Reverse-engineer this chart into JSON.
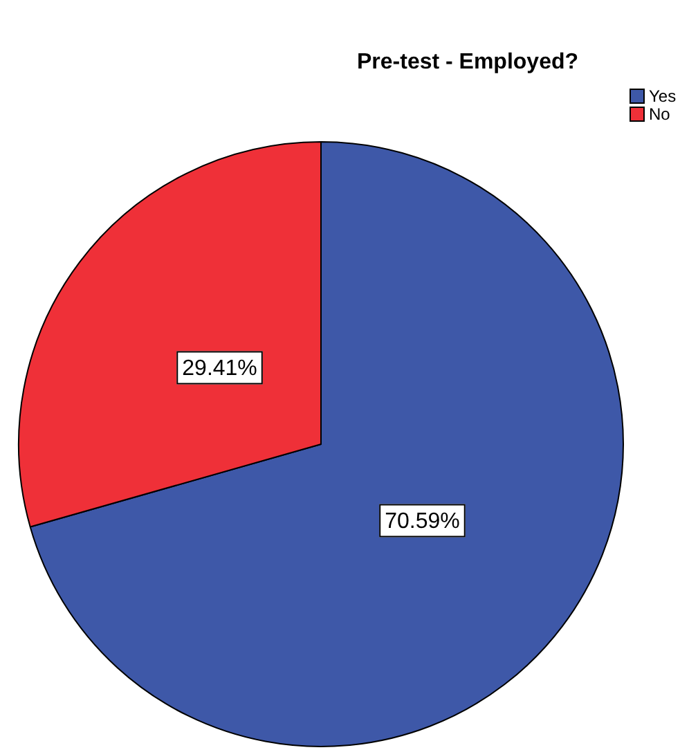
{
  "chart_data": {
    "type": "pie",
    "title": "Pre-test - Employed?",
    "categories": [
      "Yes",
      "No"
    ],
    "values": [
      70.59,
      29.41
    ],
    "colors": [
      "#3e58a8",
      "#ef3038"
    ],
    "value_labels": [
      "70.59%",
      "29.41%"
    ],
    "legend": "top right"
  }
}
